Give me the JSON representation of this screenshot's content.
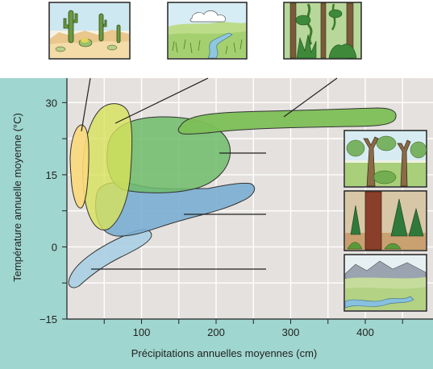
{
  "chart_data": {
    "type": "diagram",
    "title": "",
    "xlabel": "Précipitations annuelles moyennes (cm)",
    "ylabel": "Température annuelle moyenne (°C)",
    "xlim": [
      0,
      450
    ],
    "ylim": [
      -15,
      30
    ],
    "x_ticks": [
      "100",
      "200",
      "300",
      "400"
    ],
    "y_ticks": [
      "30",
      "15",
      "0",
      "−15"
    ],
    "grid": true,
    "colors": {
      "panel_background": "#9fd6cf",
      "plot_background": "#e5e1de",
      "desert": "#f9d97a",
      "grassland": "#d7e25a",
      "temperate_forest": "#6fbc6a",
      "tropical_forest": "#7cbf56",
      "boreal_forest": "#78acd2",
      "tundra": "#a8cfe3"
    },
    "illustrations": [
      "desert-scene",
      "grassland-scene",
      "tropical-forest-scene",
      "temperate-forest-scene",
      "conifer-forest-scene",
      "tundra-scene"
    ]
  }
}
